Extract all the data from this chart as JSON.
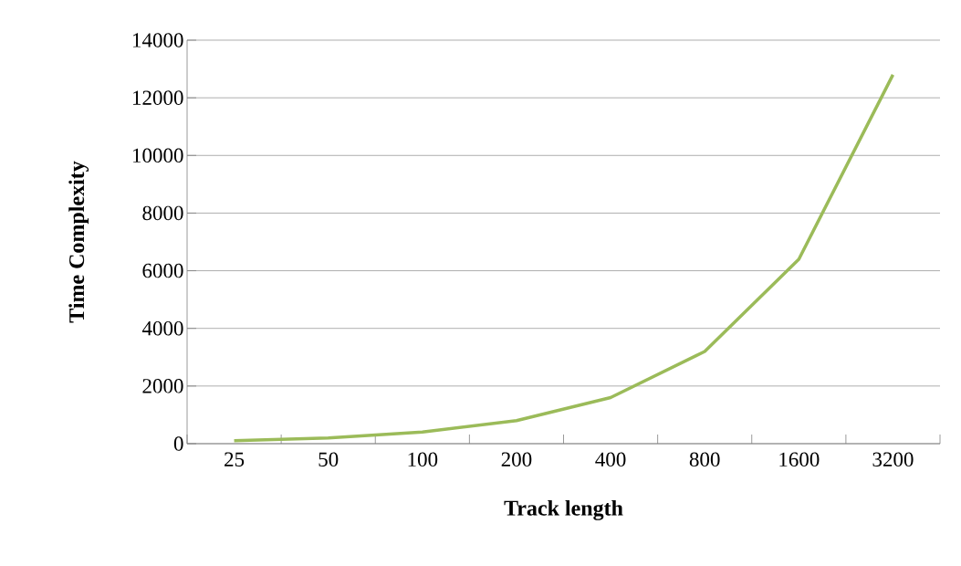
{
  "chart_data": {
    "type": "line",
    "xlabel": "Track length",
    "ylabel": "Time Complexity",
    "categories": [
      "25",
      "50",
      "100",
      "200",
      "400",
      "800",
      "1600",
      "3200"
    ],
    "series": [
      {
        "color": "#9bbb59",
        "values": [
          100,
          200,
          400,
          800,
          1600,
          3200,
          6400,
          12800
        ]
      }
    ],
    "ylim": [
      0,
      14000
    ],
    "yticks": [
      0,
      2000,
      4000,
      6000,
      8000,
      10000,
      12000,
      14000
    ],
    "grid": "y",
    "marker": "none",
    "line_style": "solid"
  }
}
